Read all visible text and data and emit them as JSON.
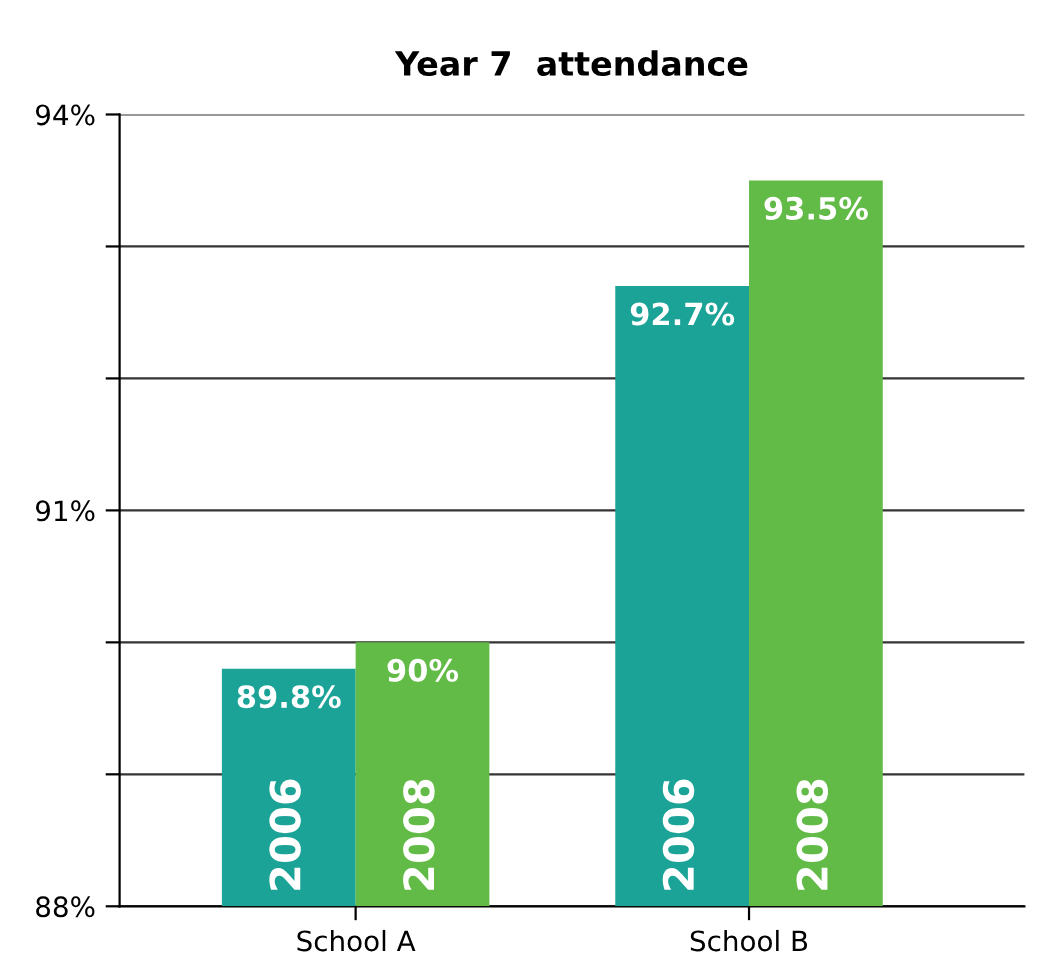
{
  "chart_data": {
    "type": "bar",
    "title": "Year 7  attendance",
    "categories": [
      "School A",
      "School B"
    ],
    "series": [
      {
        "name": "2006",
        "color": "#1aa396",
        "values": [
          89.8,
          92.7
        ],
        "value_labels": [
          "89.8%",
          "92.7%"
        ]
      },
      {
        "name": "2008",
        "color": "#62bb46",
        "values": [
          90,
          93.5
        ],
        "value_labels": [
          "90%",
          "93.5%"
        ]
      }
    ],
    "ylim": [
      88,
      94
    ],
    "yticks": [
      {
        "value": 88,
        "label": "88%"
      },
      {
        "value": 89,
        "label": null
      },
      {
        "value": 90,
        "label": null
      },
      {
        "value": 91,
        "label": "91%"
      },
      {
        "value": 92,
        "label": null
      },
      {
        "value": 93,
        "label": null
      },
      {
        "value": 94,
        "label": "94%"
      }
    ],
    "grid": "y",
    "legend": false
  }
}
